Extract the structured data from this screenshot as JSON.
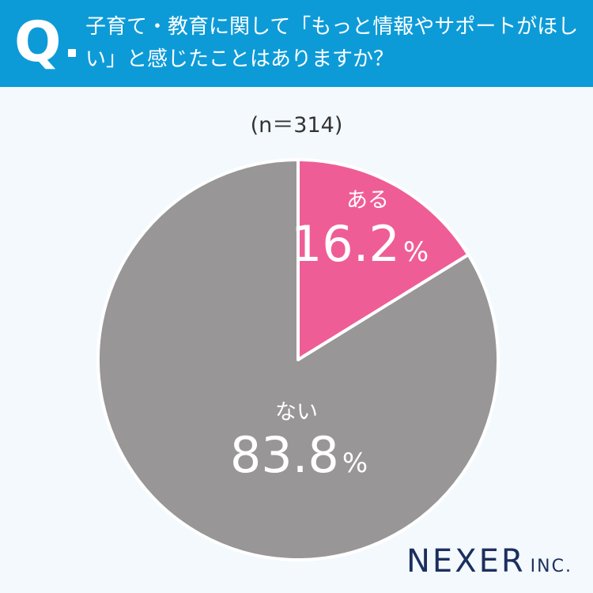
{
  "header": {
    "q_mark": "Q",
    "question": "子育て・教育に関して「もっと情報やサポートがほしい」と感じたことはありますか？"
  },
  "chart_data": {
    "type": "pie",
    "sample_size_label": "(n＝314)",
    "slices": [
      {
        "label": "ある",
        "value": 16.2,
        "value_text": "16.2",
        "unit": "%",
        "color": "#ef5d96"
      },
      {
        "label": "ない",
        "value": 83.8,
        "value_text": "83.8",
        "unit": "%",
        "color": "#989697"
      }
    ]
  },
  "brand": {
    "logo": "NEXER",
    "logo_suffix": "INC."
  }
}
